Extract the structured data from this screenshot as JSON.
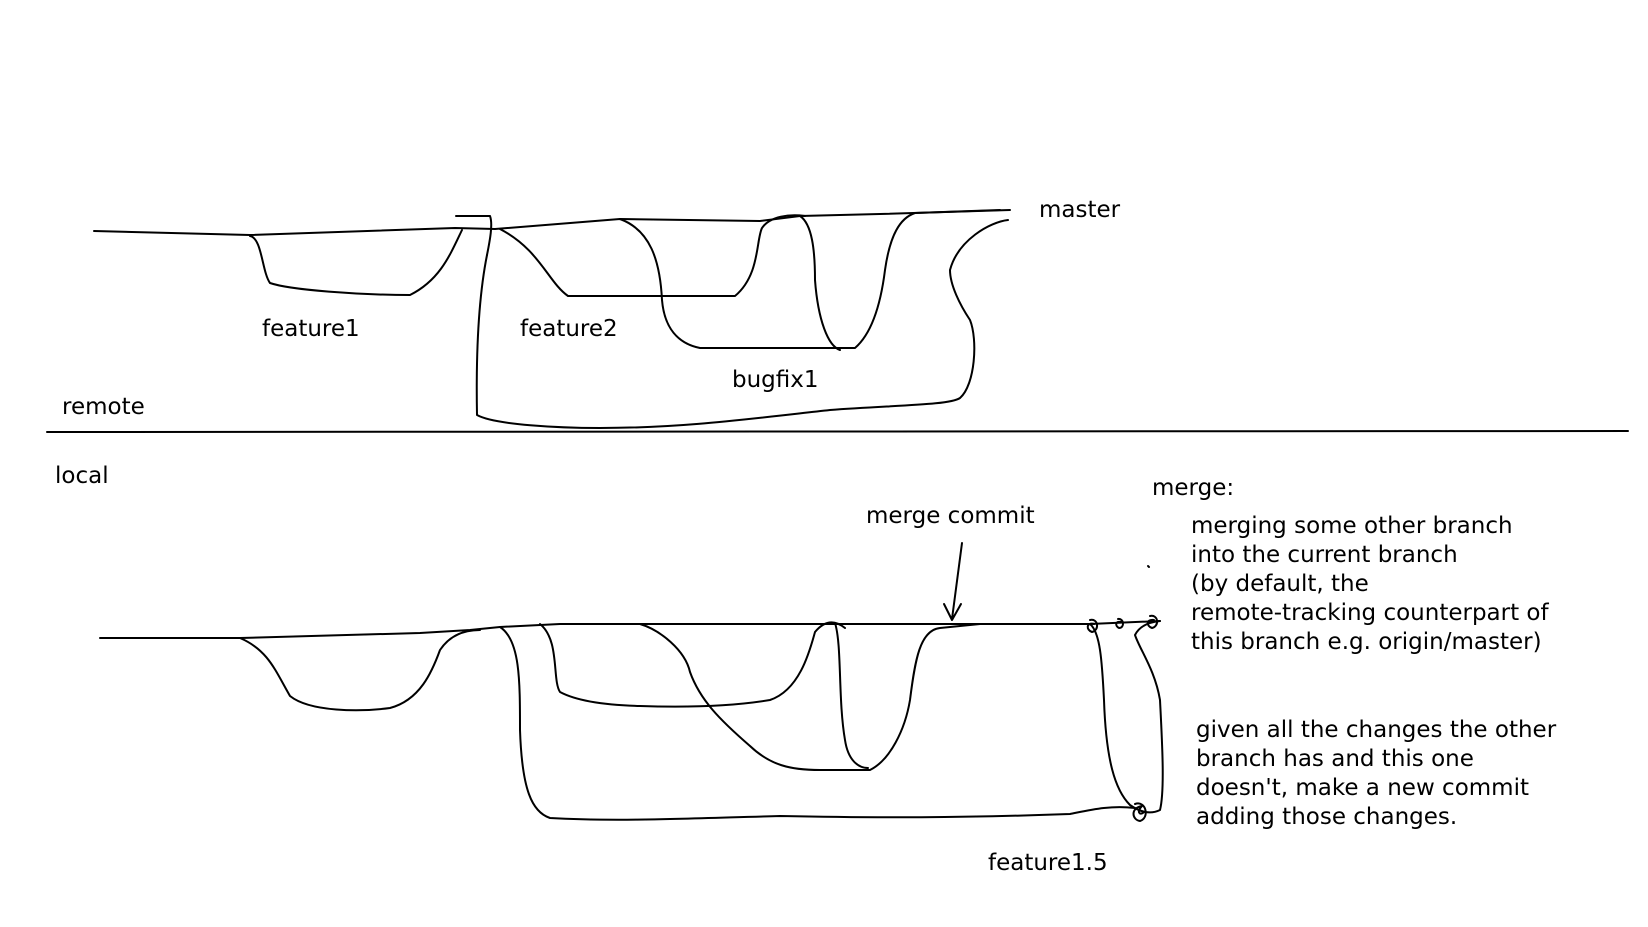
{
  "remote": {
    "section_label": "remote",
    "branches": {
      "master": "master",
      "feature1": "feature1",
      "feature2": "feature2",
      "bugfix1": "bugfix1"
    }
  },
  "local": {
    "section_label": "local",
    "annotations": {
      "merge_commit": "merge commit",
      "feature1_5": "feature1.5"
    }
  },
  "explanation": {
    "heading": "merge:",
    "paragraph1": [
      "merging some other branch",
      "into the current branch",
      "(by default, the",
      "remote-tracking counterpart of",
      "this branch e.g. origin/master)"
    ],
    "paragraph2": [
      "given all the changes the other",
      "branch has and this one",
      "doesn't, make a new commit",
      "adding those changes."
    ]
  }
}
